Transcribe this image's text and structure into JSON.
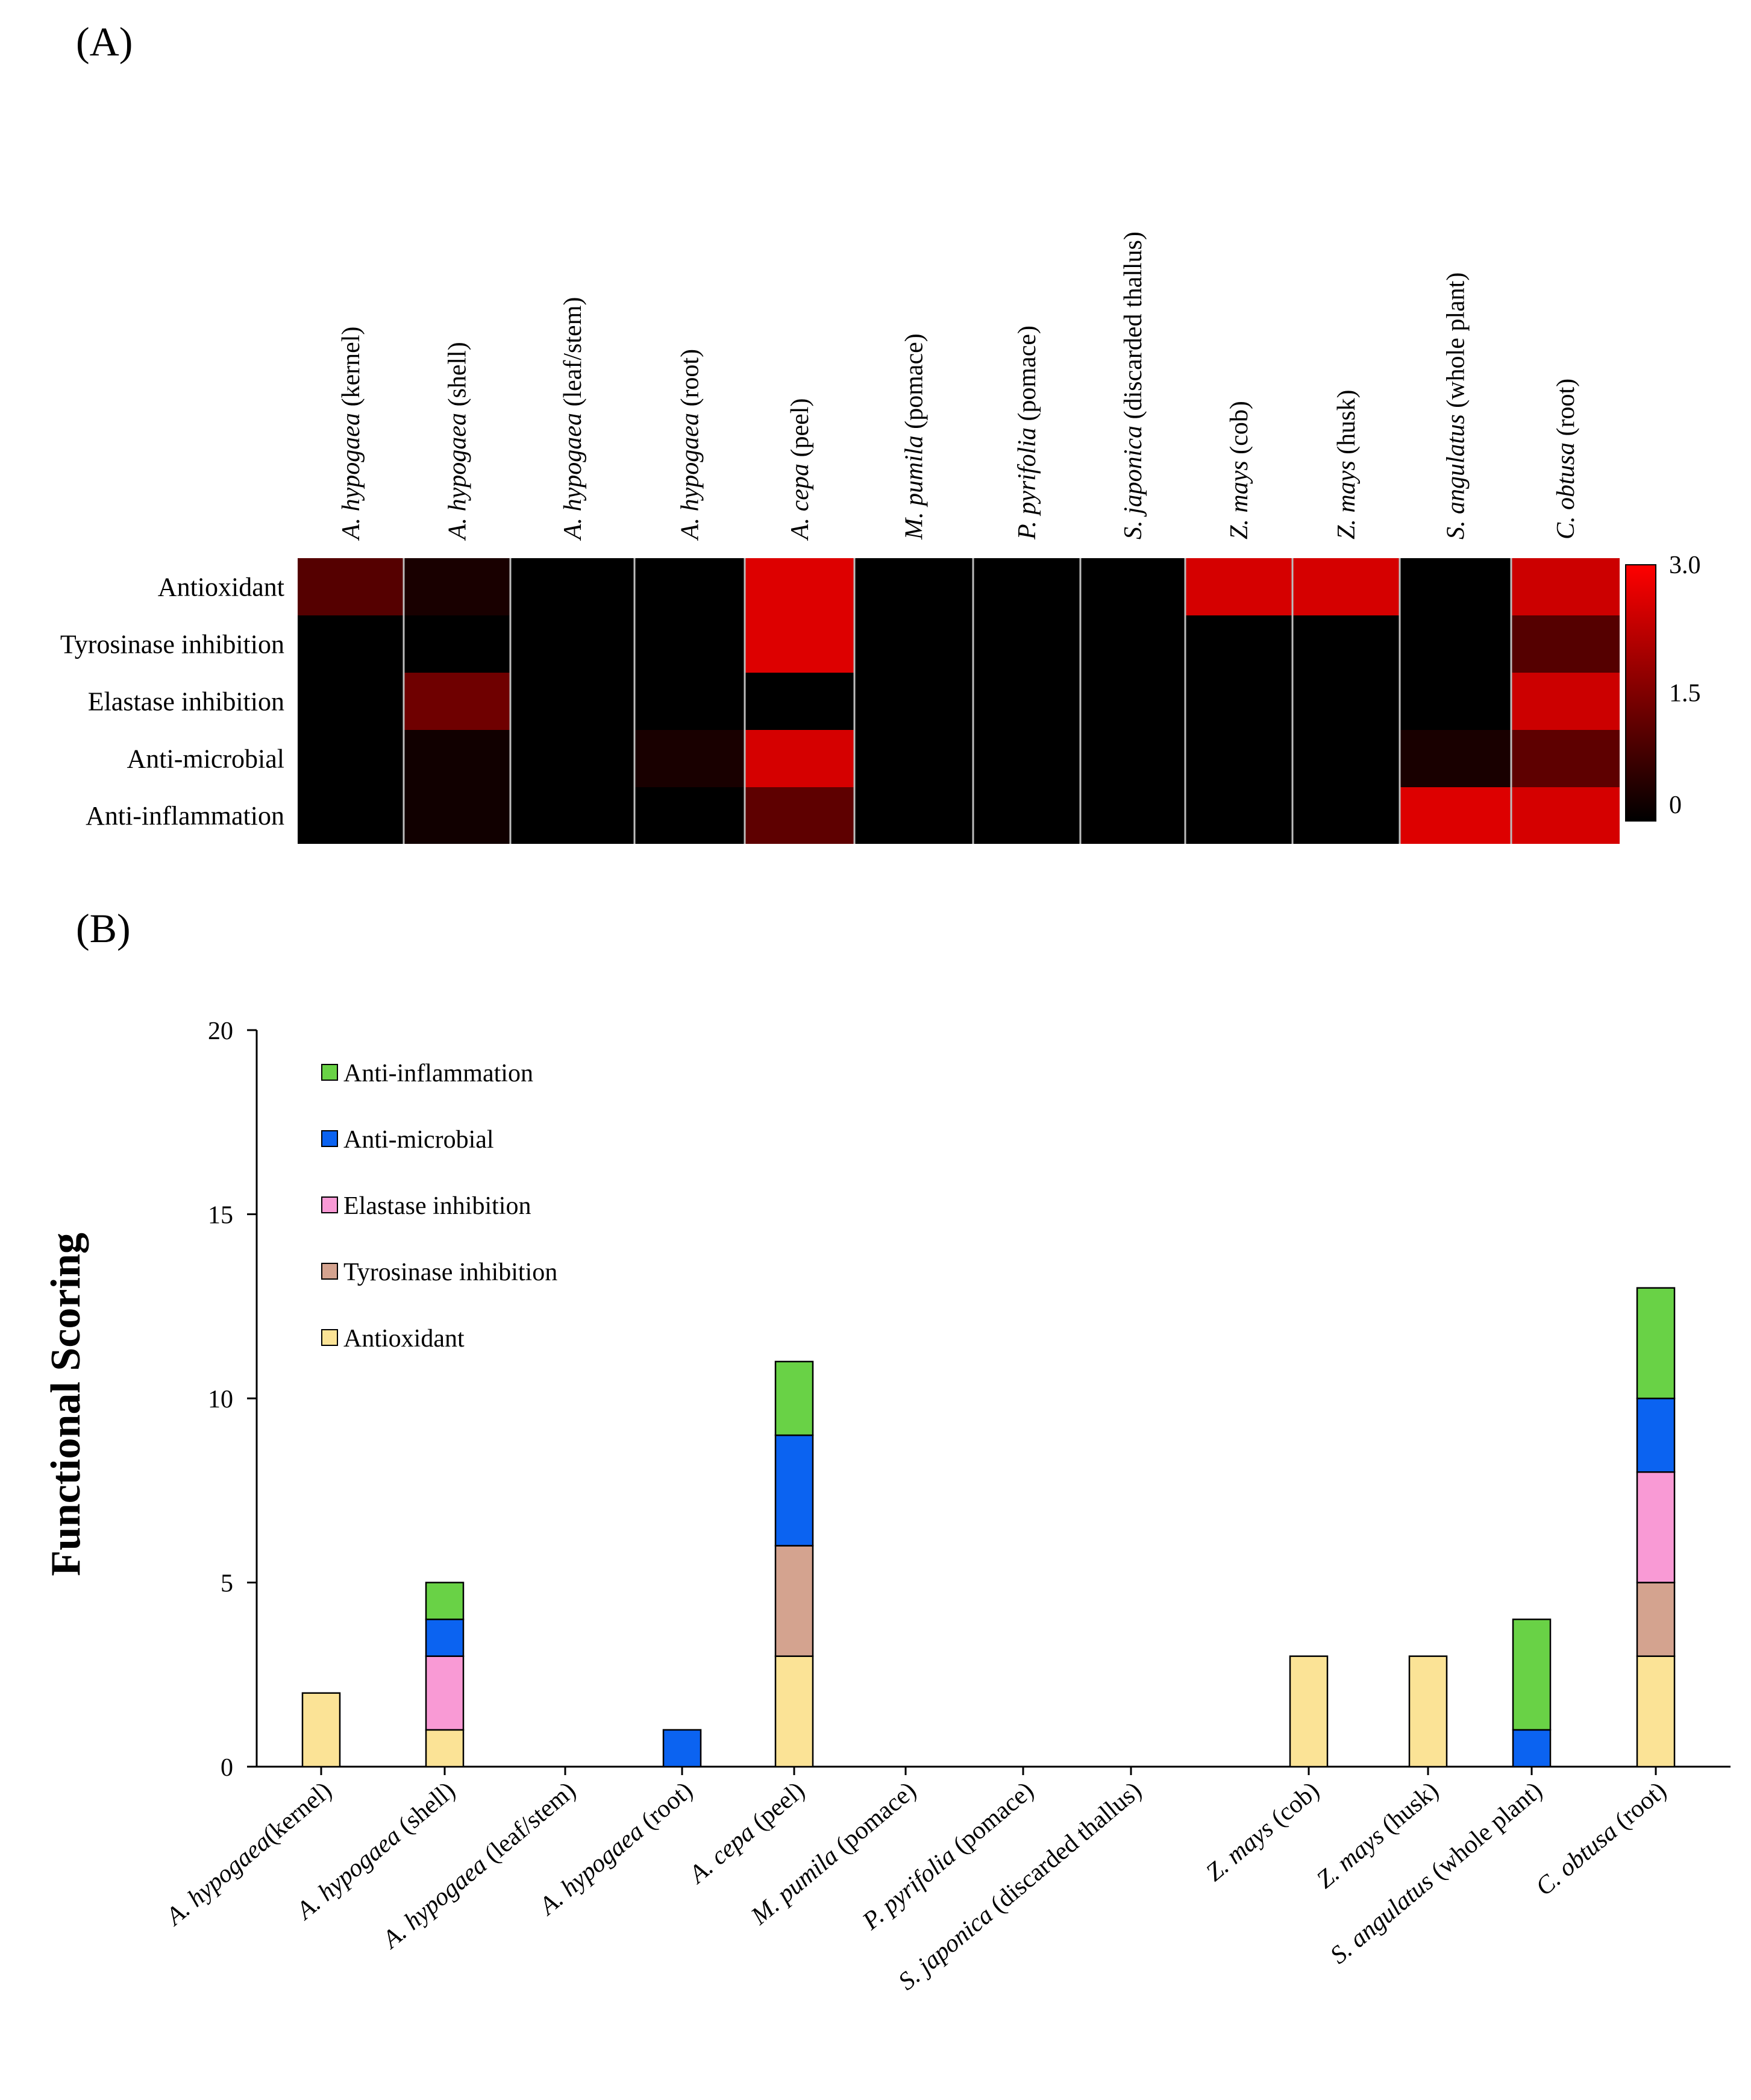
{
  "panel_labels": {
    "a": "(A)",
    "b": "(B)"
  },
  "colors": {
    "heat_low": "#000000",
    "heat_high": "#ff0000",
    "antioxidant": "#fbe396",
    "tyrosinase": "#d4a38f",
    "elastase": "#f99ad5",
    "antimicrobial": "#0b63f1",
    "antiinflammation": "#69d246"
  },
  "categories": [
    {
      "italic": "A. hypogaea",
      "plain": " (kernel)",
      "plain_b": "(kernel)"
    },
    {
      "italic": "A. hypogaea",
      "plain": " (shell)",
      "plain_b": " (shell)"
    },
    {
      "italic": "A. hypogaea",
      "plain": " (leaf/stem)",
      "plain_b": " (leaf/stem)"
    },
    {
      "italic": "A. hypogaea",
      "plain": " (root)",
      "plain_b": " (root)"
    },
    {
      "italic": "A. cepa",
      "plain": " (peel)",
      "plain_b": " (peel)"
    },
    {
      "italic": "M. pumila",
      "plain": " (pomace)",
      "plain_b": " (pomace)"
    },
    {
      "italic": "P. pyrifolia",
      "plain": " (pomace)",
      "plain_b": " (pomace)"
    },
    {
      "italic": "S. japonica",
      "plain": " (discarded thallus)",
      "plain_b": " (discarded thallus)"
    },
    {
      "italic": "Z. mays",
      "plain": " (cob)",
      "plain_b": " (cob)"
    },
    {
      "italic": "Z. mays",
      "plain": " (husk)",
      "plain_b": " (husk)"
    },
    {
      "italic": "S. angulatus",
      "plain": " (whole plant)",
      "plain_b": " (whole plant)"
    },
    {
      "italic": "C. obtusa",
      "plain": " (root)",
      "plain_b": " (root)"
    }
  ],
  "chart_data": [
    {
      "type": "heatmap",
      "rows": [
        "Antioxidant",
        "Tyrosinase inhibition",
        "Elastase inhibition",
        "Anti-microbial",
        "Anti-inflammation"
      ],
      "values": [
        [
          1.0,
          0.3,
          0,
          0,
          2.6,
          0,
          0,
          0,
          2.5,
          2.5,
          0,
          2.4
        ],
        [
          0,
          0,
          0,
          0,
          2.6,
          0,
          0,
          0,
          0,
          0,
          0,
          1.0
        ],
        [
          0,
          1.3,
          0,
          0,
          0,
          0,
          0,
          0,
          0,
          0,
          0,
          2.4
        ],
        [
          0,
          0.2,
          0,
          0.3,
          2.5,
          0,
          0,
          0,
          0,
          0,
          0.3,
          1.1
        ],
        [
          0,
          0.2,
          0,
          0,
          1.1,
          0,
          0,
          0,
          0,
          0,
          2.6,
          2.5
        ]
      ],
      "colorbar": {
        "min": 0,
        "max": 3.0,
        "ticks": [
          "3.0",
          "1.5",
          "0"
        ]
      }
    },
    {
      "type": "bar",
      "stacked": true,
      "ylabel": "Functional Scoring",
      "ylim": [
        0,
        20
      ],
      "yticks": [
        0,
        5,
        10,
        15,
        20
      ],
      "series": [
        {
          "name": "Antioxidant",
          "color_key": "antioxidant",
          "values": [
            2,
            1,
            0,
            0,
            3,
            0,
            0,
            0,
            3,
            3,
            0,
            3
          ]
        },
        {
          "name": "Tyrosinase inhibition",
          "color_key": "tyrosinase",
          "values": [
            0,
            0,
            0,
            0,
            3,
            0,
            0,
            0,
            0,
            0,
            0,
            2
          ]
        },
        {
          "name": "Elastase inhibition",
          "color_key": "elastase",
          "values": [
            0,
            2,
            0,
            0,
            0,
            0,
            0,
            0,
            0,
            0,
            0,
            3
          ]
        },
        {
          "name": "Anti-microbial",
          "color_key": "antimicrobial",
          "values": [
            0,
            1,
            0,
            1,
            3,
            0,
            0,
            0,
            0,
            0,
            1,
            2
          ]
        },
        {
          "name": "Anti-inflammation",
          "color_key": "antiinflammation",
          "values": [
            0,
            1,
            0,
            0,
            2,
            0,
            0,
            0,
            0,
            0,
            3,
            3
          ]
        }
      ],
      "legend": [
        "Anti-inflammation",
        "Anti-microbial",
        "Elastase inhibition",
        "Tyrosinase inhibition",
        "Antioxidant"
      ]
    }
  ]
}
